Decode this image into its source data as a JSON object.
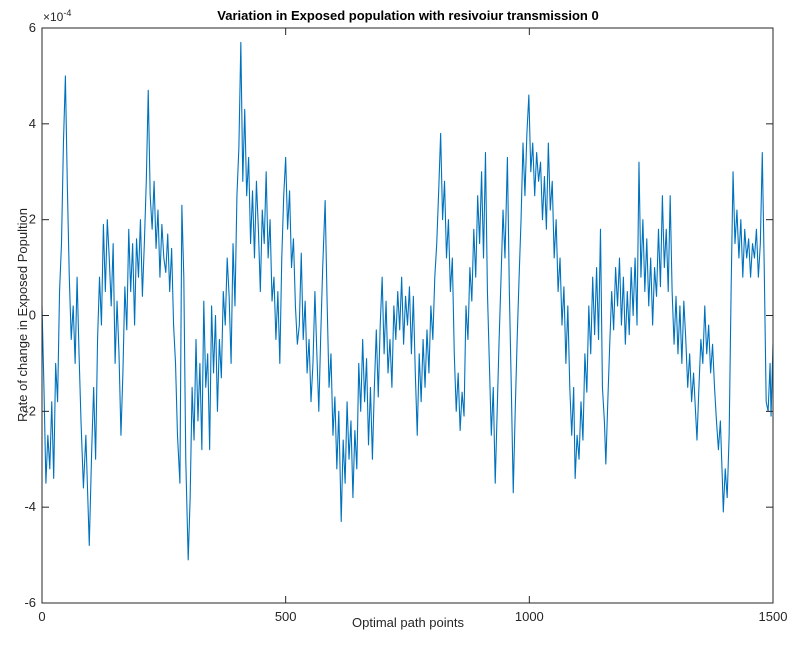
{
  "chart_data": {
    "type": "line",
    "title": "Variation in Exposed population with resivoiur transmission 0",
    "xlabel": "Optimal path points",
    "ylabel": "Rate of change in Exposed Popultion",
    "y_multiplier": "×10",
    "y_exponent": "-4",
    "xlim": [
      0,
      1500
    ],
    "xticks": [
      0,
      500,
      1000,
      1500
    ],
    "ylim": [
      -6,
      6
    ],
    "yticks": [
      -6,
      -4,
      -2,
      0,
      2,
      4,
      6
    ],
    "x": [
      0,
      4,
      8,
      12,
      16,
      20,
      24,
      28,
      32,
      36,
      40,
      44,
      48,
      52,
      56,
      60,
      64,
      68,
      72,
      76,
      80,
      85,
      90,
      97,
      102,
      106,
      110,
      114,
      118,
      122,
      126,
      130,
      134,
      138,
      142,
      146,
      150,
      154,
      158,
      162,
      166,
      170,
      174,
      178,
      182,
      186,
      190,
      194,
      198,
      202,
      206,
      210,
      214,
      218,
      222,
      226,
      230,
      234,
      238,
      242,
      246,
      250,
      254,
      258,
      262,
      266,
      270,
      274,
      278,
      283,
      287,
      291,
      295,
      300,
      304,
      308,
      312,
      316,
      320,
      324,
      328,
      332,
      336,
      340,
      344,
      348,
      352,
      356,
      360,
      364,
      368,
      372,
      376,
      380,
      384,
      388,
      392,
      396,
      400,
      404,
      408,
      412,
      416,
      420,
      424,
      428,
      432,
      436,
      440,
      444,
      448,
      452,
      456,
      460,
      464,
      468,
      472,
      476,
      480,
      484,
      488,
      492,
      496,
      500,
      504,
      508,
      512,
      516,
      520,
      524,
      528,
      532,
      536,
      540,
      544,
      548,
      552,
      556,
      560,
      564,
      568,
      572,
      576,
      581,
      585,
      589,
      593,
      597,
      601,
      605,
      609,
      614,
      618,
      622,
      626,
      630,
      634,
      638,
      642,
      646,
      650,
      654,
      658,
      662,
      666,
      670,
      674,
      678,
      682,
      686,
      690,
      694,
      698,
      702,
      706,
      710,
      714,
      718,
      722,
      726,
      730,
      734,
      738,
      742,
      746,
      750,
      754,
      758,
      762,
      766,
      770,
      774,
      778,
      782,
      786,
      790,
      794,
      798,
      802,
      806,
      810,
      814,
      818,
      822,
      826,
      830,
      834,
      838,
      842,
      846,
      850,
      854,
      858,
      862,
      866,
      870,
      874,
      878,
      882,
      886,
      890,
      894,
      898,
      902,
      906,
      910,
      914,
      918,
      922,
      926,
      930,
      934,
      938,
      942,
      946,
      950,
      955,
      959,
      963,
      967,
      971,
      975,
      979,
      983,
      987,
      991,
      995,
      999,
      1003,
      1007,
      1011,
      1015,
      1019,
      1023,
      1027,
      1031,
      1035,
      1039,
      1043,
      1047,
      1051,
      1055,
      1059,
      1063,
      1067,
      1071,
      1075,
      1079,
      1083,
      1087,
      1091,
      1094,
      1098,
      1102,
      1106,
      1110,
      1114,
      1118,
      1122,
      1126,
      1130,
      1134,
      1138,
      1142,
      1146,
      1150,
      1154,
      1157,
      1161,
      1165,
      1169,
      1173,
      1177,
      1181,
      1185,
      1189,
      1193,
      1197,
      1201,
      1205,
      1209,
      1213,
      1217,
      1221,
      1225,
      1229,
      1233,
      1237,
      1241,
      1245,
      1249,
      1253,
      1257,
      1261,
      1265,
      1269,
      1273,
      1277,
      1281,
      1285,
      1289,
      1293,
      1297,
      1301,
      1305,
      1309,
      1313,
      1317,
      1321,
      1325,
      1329,
      1333,
      1337,
      1341,
      1344,
      1348,
      1352,
      1356,
      1360,
      1364,
      1368,
      1372,
      1376,
      1380,
      1384,
      1388,
      1392,
      1396,
      1398,
      1402,
      1406,
      1410,
      1414,
      1418,
      1422,
      1426,
      1430,
      1434,
      1438,
      1442,
      1446,
      1450,
      1454,
      1458,
      1462,
      1466,
      1470,
      1474,
      1478,
      1482,
      1486,
      1490,
      1494,
      1496,
      1500
    ],
    "series": [
      {
        "name": "Exposed",
        "color": "#0072BD",
        "values": [
          0.2,
          -1.5,
          -3.5,
          -2.5,
          -3.2,
          -1.8,
          -3.4,
          -1,
          -1.8,
          0.5,
          1.5,
          3.6,
          5,
          2.7,
          0.8,
          -0.5,
          0.2,
          -1,
          0.8,
          -0.8,
          -2.2,
          -3.6,
          -2.5,
          -4.8,
          -2.8,
          -1.5,
          -3,
          -0.5,
          0.8,
          -0.2,
          1.9,
          0.5,
          2,
          1.2,
          0.2,
          1.5,
          -1,
          0.3,
          -0.8,
          -2.5,
          -1.2,
          0.6,
          -0.3,
          1.8,
          0.5,
          1.5,
          -0.2,
          1.6,
          0.8,
          2,
          0.4,
          1.5,
          2.8,
          4.7,
          2.5,
          1.8,
          2.8,
          1.4,
          2.2,
          0.8,
          1.9,
          1.2,
          0.9,
          1.7,
          0.5,
          1.4,
          -0.2,
          -1,
          -2.5,
          -3.5,
          2.3,
          0.8,
          -3,
          -5.1,
          -3.8,
          -1.5,
          -2.6,
          -0.5,
          -2.2,
          -1,
          -2.8,
          0.3,
          -1.5,
          -0.8,
          -2.8,
          0.2,
          -1.2,
          0,
          -2,
          -0.5,
          -1.3,
          0.5,
          -0.2,
          1.2,
          0.4,
          -1,
          1.5,
          0.2,
          2.5,
          3.5,
          5.7,
          2.8,
          4.3,
          2.5,
          3.3,
          1.5,
          2.6,
          1.2,
          2.8,
          1.8,
          0.5,
          2.2,
          1.5,
          3,
          1.2,
          2,
          0.3,
          0.8,
          -0.5,
          0.5,
          -1,
          1.2,
          2.5,
          3.3,
          1.8,
          2.6,
          1,
          1.6,
          0.2,
          -0.6,
          -0.2,
          1.3,
          -0.5,
          0.3,
          -1.2,
          -0.5,
          -1.8,
          -1,
          0.5,
          -0.8,
          -2,
          -0.4,
          1,
          2.4,
          0.3,
          -1.5,
          -0.8,
          -2.5,
          -1.7,
          -3.2,
          -2,
          -4.3,
          -2.6,
          -3.5,
          -1.8,
          -3,
          -2.2,
          -3.8,
          -2.4,
          -3.2,
          -1,
          -2,
          -0.5,
          -1.8,
          -0.9,
          -2.7,
          -1.5,
          -3,
          -1.5,
          -0.3,
          -1.7,
          -0.2,
          0.8,
          -0.8,
          0.3,
          -1.2,
          -0.5,
          -1.5,
          0.2,
          -0.5,
          0.5,
          -0.3,
          0.8,
          -0.6,
          0.4,
          -0.2,
          0.6,
          -0.8,
          0.4,
          -1.2,
          -2.5,
          -0.8,
          -1.8,
          -0.5,
          -1.5,
          -0.3,
          -1.2,
          0.2,
          -0.5,
          0.8,
          1.5,
          2.6,
          3.8,
          2,
          2.8,
          1.2,
          2,
          0.5,
          1.2,
          -0.8,
          -2,
          -1.2,
          -2.4,
          -1.6,
          -2.1,
          0.2,
          -0.5,
          1,
          0.3,
          1.8,
          0.8,
          2.5,
          1.5,
          3,
          1.2,
          3.4,
          0.5,
          -1,
          -2.5,
          -1.5,
          -3.5,
          -2,
          -0.5,
          0.8,
          2.2,
          1.2,
          3.3,
          0.5,
          -1.5,
          -3.7,
          -2,
          -0.5,
          0.8,
          2,
          3.6,
          2.5,
          3.8,
          4.6,
          3,
          3.6,
          2.5,
          3.4,
          2.8,
          3.2,
          2,
          2.9,
          1.8,
          3.6,
          2.2,
          2.8,
          1.2,
          2,
          0.5,
          1.2,
          -0.2,
          0.6,
          -1,
          0.2,
          -1.5,
          -2.5,
          -1.5,
          -3.4,
          -2.5,
          -3,
          -1.8,
          -2.6,
          -0.8,
          -1.6,
          0.2,
          -0.8,
          0.8,
          -0.4,
          1,
          -0.5,
          1.8,
          -1.5,
          -2.2,
          -3.1,
          -1.8,
          -0.6,
          0.5,
          -0.3,
          1,
          0.2,
          1.2,
          -0.2,
          0.8,
          -0.6,
          0.5,
          -0.4,
          1,
          0,
          1.2,
          -0.2,
          3.2,
          0.8,
          2,
          0.5,
          1.6,
          0.2,
          1.2,
          -0.2,
          1,
          0.4,
          1.8,
          0.6,
          2.5,
          1,
          1.8,
          0.5,
          2.5,
          0.5,
          -0.6,
          0.4,
          -0.8,
          0.2,
          -1,
          0.3,
          -0.5,
          -1.5,
          -0.8,
          -1.8,
          -1.2,
          -2,
          -2.6,
          -1.5,
          -0.5,
          -1,
          0.2,
          -0.8,
          -0.2,
          -1.2,
          -0.6,
          -1.5,
          -2.2,
          -2.8,
          -2.2,
          -3.4,
          -4.1,
          -3.2,
          -3.8,
          -2.5,
          0.5,
          3,
          1.5,
          2.2,
          1.2,
          2,
          0.8,
          1.8,
          1.2,
          1.6,
          0.8,
          1.5,
          1.2,
          1.8,
          0.8,
          1.5,
          3.4,
          1,
          -1.8,
          -2,
          -1,
          -2.1,
          -0.6
        ]
      }
    ]
  }
}
